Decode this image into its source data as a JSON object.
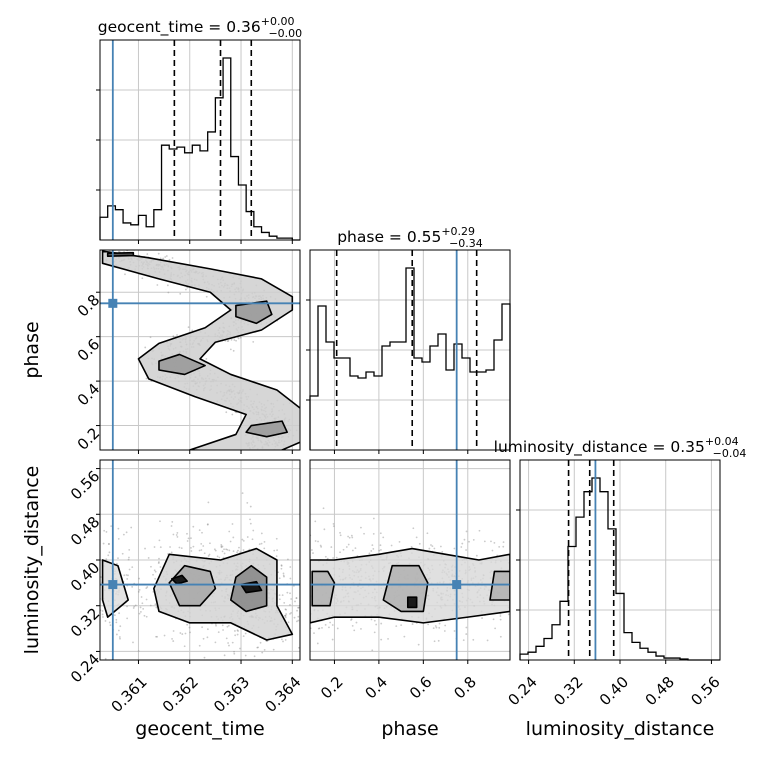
{
  "chart_data": {
    "type": "corner",
    "parameters": [
      "geocent_time",
      "phase",
      "luminosity_distance"
    ],
    "truths": {
      "geocent_time": 0.3605,
      "phase": 0.75,
      "luminosity_distance": 0.357
    },
    "colors": {
      "truth": "#4682b4",
      "hist": "#000000",
      "grid": "#c8c8c8"
    },
    "grid": true,
    "titles": [
      {
        "param": "geocent_time",
        "base": "geocent_time = 0.36",
        "plus": "+0.00",
        "minus": "−0.00"
      },
      {
        "param": "phase",
        "base": "phase = 0.55",
        "plus": "+0.29",
        "minus": "−0.34"
      },
      {
        "param": "luminosity_distance",
        "base": "luminosity_distance = 0.35",
        "plus": "+0.04",
        "minus": "−0.04"
      }
    ],
    "axes": {
      "geocent_time": {
        "label": "geocent_time",
        "range": [
          0.36025,
          0.36415
        ],
        "ticks": [
          0.361,
          0.362,
          0.363,
          0.364
        ],
        "tick_labels": [
          "0.361",
          "0.362",
          "0.363",
          "0.364"
        ]
      },
      "phase": {
        "label": "phase",
        "range": [
          0.09,
          0.99
        ],
        "ticks": [
          0.2,
          0.4,
          0.6,
          0.8
        ],
        "tick_labels": [
          "0.2",
          "0.4",
          "0.6",
          "0.8"
        ]
      },
      "luminosity_distance": {
        "label": "luminosity_distance",
        "range": [
          0.225,
          0.575
        ],
        "ticks": [
          0.24,
          0.32,
          0.4,
          0.48,
          0.56
        ],
        "tick_labels": [
          "0.24",
          "0.32",
          "0.40",
          "0.48",
          "0.56"
        ]
      }
    },
    "histograms": {
      "geocent_time": {
        "edges": [
          0.36025,
          0.3604,
          0.36055,
          0.3607,
          0.36085,
          0.361,
          0.36115,
          0.3613,
          0.36145,
          0.3616,
          0.36175,
          0.3619,
          0.36205,
          0.3622,
          0.36235,
          0.3625,
          0.36265,
          0.3628,
          0.36295,
          0.3631,
          0.36325,
          0.3634,
          0.36355,
          0.3637,
          0.36385,
          0.364,
          0.36415
        ],
        "heights": [
          0.12,
          0.18,
          0.16,
          0.09,
          0.08,
          0.13,
          0.07,
          0.16,
          0.5,
          0.48,
          0.49,
          0.46,
          0.5,
          0.47,
          0.57,
          0.75,
          0.96,
          0.44,
          0.29,
          0.15,
          0.07,
          0.04,
          0.02,
          0.01,
          0.01,
          0.0
        ],
        "quantile_lines": [
          0.3617,
          0.3626,
          0.3632
        ]
      },
      "phase": {
        "edges": [
          0.09,
          0.126,
          0.162,
          0.198,
          0.234,
          0.27,
          0.306,
          0.342,
          0.378,
          0.414,
          0.45,
          0.486,
          0.522,
          0.558,
          0.594,
          0.63,
          0.666,
          0.702,
          0.738,
          0.774,
          0.81,
          0.846,
          0.882,
          0.918,
          0.954,
          0.99
        ],
        "heights": [
          0.27,
          0.72,
          0.54,
          0.46,
          0.46,
          0.37,
          0.36,
          0.39,
          0.37,
          0.52,
          0.54,
          0.54,
          0.91,
          0.46,
          0.44,
          0.52,
          0.58,
          0.4,
          0.53,
          0.46,
          0.39,
          0.39,
          0.4,
          0.55,
          0.73
        ],
        "quantile_lines": [
          0.21,
          0.55,
          0.84
        ]
      },
      "luminosity_distance": {
        "edges": [
          0.225,
          0.239,
          0.253,
          0.267,
          0.281,
          0.295,
          0.309,
          0.323,
          0.337,
          0.351,
          0.365,
          0.379,
          0.393,
          0.407,
          0.421,
          0.435,
          0.449,
          0.463,
          0.477,
          0.491,
          0.505,
          0.519,
          0.533,
          0.547,
          0.561,
          0.575
        ],
        "heights": [
          0.03,
          0.04,
          0.07,
          0.11,
          0.18,
          0.3,
          0.58,
          0.73,
          0.86,
          0.93,
          0.86,
          0.67,
          0.34,
          0.14,
          0.09,
          0.06,
          0.04,
          0.02,
          0.01,
          0.01,
          0.005,
          0.0,
          0.0,
          0.0,
          0.0
        ],
        "quantile_lines": [
          0.31,
          0.347,
          0.389
        ]
      }
    },
    "scatter_pairs": [
      {
        "x": "geocent_time",
        "y": "phase"
      },
      {
        "x": "geocent_time",
        "y": "luminosity_distance"
      },
      {
        "x": "phase",
        "y": "luminosity_distance"
      }
    ]
  }
}
